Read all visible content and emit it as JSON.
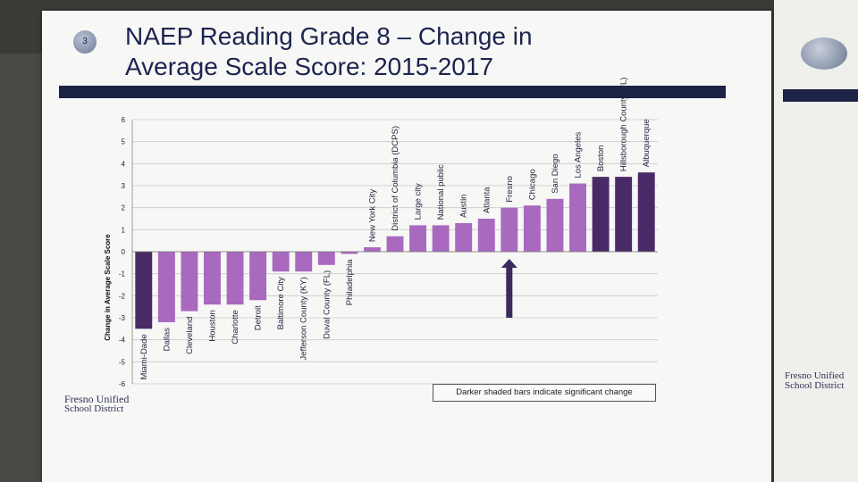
{
  "slide": {
    "number": "3",
    "title_line1": "NAEP Reading Grade 8 – Change in",
    "title_line2": "Average Scale Score: 2015-2017"
  },
  "logo": {
    "line1": "Fresno Unified",
    "line2": "School District"
  },
  "next_slide_logo": {
    "line1": "Fresno Unified",
    "line2": "School District"
  },
  "note": "Darker shaded bars indicate significant change",
  "colors": {
    "light_bar": "#a869bf",
    "dark_bar": "#4a2a66",
    "arrow": "#3a2a5e",
    "title_bar": "#1d2345"
  },
  "chart_data": {
    "type": "bar",
    "ylabel": "Change in Average Scale Score",
    "ylim": [
      -6,
      6
    ],
    "yticks": [
      6,
      5,
      4,
      3,
      2,
      1,
      0,
      -1,
      -2,
      -3,
      -4,
      -5,
      -6
    ],
    "grid": true,
    "categories": [
      "Miami-Dade",
      "Dallas",
      "Cleveland",
      "Houston",
      "Charlotte",
      "Detroit",
      "Baltimore City",
      "Jefferson County (KY)",
      "Duval County (FL)",
      "Philadelphia",
      "New York City",
      "District of Columbia (DCPS)",
      "Large city",
      "National public",
      "Austin",
      "Atlanta",
      "Fresno",
      "Chicago",
      "San Diego",
      "Los Angeles",
      "Boston",
      "Hillsborough County (FL)",
      "Albuquerque"
    ],
    "values": [
      -3.5,
      -3.2,
      -2.7,
      -2.4,
      -2.4,
      -2.2,
      -0.9,
      -0.9,
      -0.6,
      -0.1,
      0.2,
      0.7,
      1.2,
      1.2,
      1.3,
      1.5,
      2.0,
      2.1,
      2.4,
      3.1,
      3.4,
      3.4,
      3.6
    ],
    "significant": [
      true,
      false,
      false,
      false,
      false,
      false,
      false,
      false,
      false,
      false,
      false,
      false,
      false,
      false,
      false,
      false,
      false,
      false,
      false,
      false,
      true,
      true,
      true
    ],
    "highlight": "Fresno"
  }
}
